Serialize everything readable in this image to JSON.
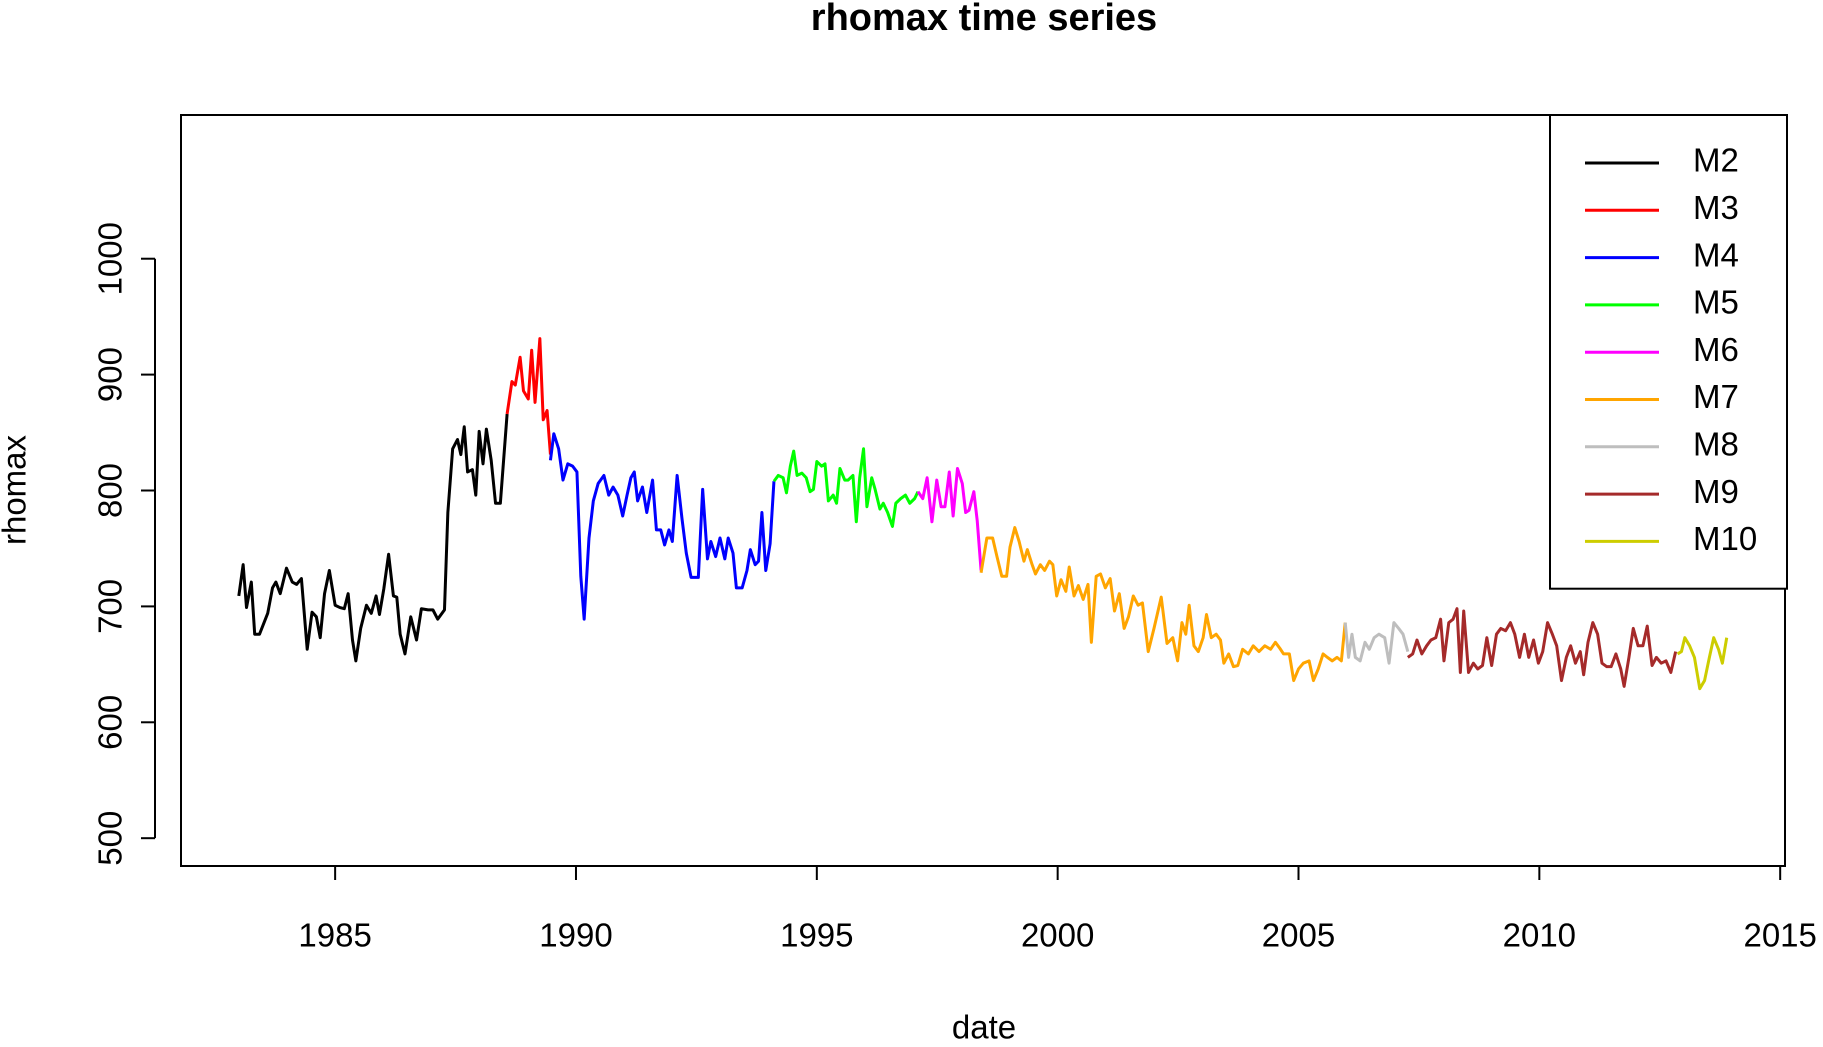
{
  "chart_data": {
    "type": "line",
    "title": "rhomax time series",
    "x_label": "date",
    "y_label": "rhomax",
    "xlim": [
      1981.8,
      2015.1
    ],
    "ylim": [
      476,
      1124
    ],
    "xticks": [
      1985,
      1990,
      1995,
      2000,
      2005,
      2010,
      2015
    ],
    "yticks": [
      500,
      600,
      700,
      800,
      900,
      1000
    ],
    "legend": "topright",
    "series": [
      {
        "name": "M2",
        "color": "#000000",
        "x": [
          1983.0,
          1983.09,
          1983.16,
          1983.26,
          1983.33,
          1983.43,
          1983.6,
          1983.7,
          1983.77,
          1983.86,
          1983.99,
          1984.11,
          1984.2,
          1984.3,
          1984.42,
          1984.52,
          1984.61,
          1984.69,
          1984.78,
          1984.88,
          1985.0,
          1985.1,
          1985.19,
          1985.27,
          1985.36,
          1985.43,
          1985.53,
          1985.65,
          1985.75,
          1985.85,
          1985.92,
          1986.01,
          1986.11,
          1986.21,
          1986.28,
          1986.35,
          1986.45,
          1986.57,
          1986.69,
          1986.79,
          1986.93,
          1987.03,
          1987.13,
          1987.27,
          1987.34,
          1987.44,
          1987.54,
          1987.61,
          1987.68,
          1987.75,
          1987.85,
          1987.92,
          1987.99,
          1988.07,
          1988.14,
          1988.24,
          1988.33,
          1988.43,
          1988.57
        ],
        "values": [
          709,
          736,
          699,
          721,
          676,
          676,
          694,
          716,
          721,
          711,
          733,
          721,
          719,
          724,
          663,
          695,
          691,
          673,
          711,
          731,
          701,
          699,
          698,
          711,
          671,
          653,
          681,
          701,
          694,
          709,
          693,
          715,
          745,
          709,
          708,
          676,
          659,
          691,
          671,
          698,
          697,
          697,
          689,
          697,
          781,
          836,
          844,
          831,
          855,
          816,
          818,
          796,
          851,
          823,
          853,
          826,
          789,
          789,
          866
        ]
      },
      {
        "name": "M3",
        "color": "#ff0000",
        "x": [
          1988.57,
          1988.67,
          1988.74,
          1988.84,
          1988.91,
          1989.01,
          1989.08,
          1989.15,
          1989.25,
          1989.32,
          1989.4,
          1989.47
        ],
        "values": [
          866,
          894,
          891,
          915,
          886,
          879,
          921,
          876,
          931,
          861,
          869,
          831
        ]
      },
      {
        "name": "M4",
        "color": "#0000ff",
        "x": [
          1989.47,
          1989.54,
          1989.64,
          1989.73,
          1989.83,
          1989.93,
          1990.02,
          1990.1,
          1990.17,
          1990.27,
          1990.36,
          1990.46,
          1990.58,
          1990.68,
          1990.77,
          1990.87,
          1990.97,
          1991.06,
          1991.14,
          1991.21,
          1991.28,
          1991.38,
          1991.47,
          1991.59,
          1991.67,
          1991.76,
          1991.84,
          1991.93,
          1992.0,
          1992.1,
          1992.2,
          1992.29,
          1992.39,
          1992.54,
          1992.63,
          1992.73,
          1992.8,
          1992.9,
          1992.99,
          1993.09,
          1993.16,
          1993.26,
          1993.33,
          1993.45,
          1993.55,
          1993.62,
          1993.72,
          1993.79,
          1993.86,
          1993.94,
          1994.03,
          1994.11
        ],
        "values": [
          826,
          849,
          836,
          809,
          823,
          821,
          816,
          726,
          689,
          759,
          791,
          806,
          813,
          796,
          803,
          796,
          778,
          796,
          811,
          816,
          791,
          803,
          781,
          809,
          766,
          766,
          753,
          766,
          756,
          813,
          776,
          746,
          725,
          725,
          801,
          741,
          756,
          743,
          759,
          741,
          759,
          746,
          716,
          716,
          731,
          749,
          736,
          739,
          781,
          731,
          754,
          808
        ]
      },
      {
        "name": "M5",
        "color": "#00ff00",
        "x": [
          1994.11,
          1994.2,
          1994.3,
          1994.37,
          1994.45,
          1994.52,
          1994.59,
          1994.69,
          1994.78,
          1994.86,
          1994.93,
          1995.0,
          1995.1,
          1995.17,
          1995.24,
          1995.34,
          1995.41,
          1995.48,
          1995.58,
          1995.65,
          1995.75,
          1995.82,
          1995.89,
          1995.97,
          1996.04,
          1996.14,
          1996.21,
          1996.31,
          1996.38,
          1996.47,
          1996.57,
          1996.64,
          1996.74,
          1996.84,
          1996.93,
          1997.03,
          1997.1
        ],
        "values": [
          808,
          813,
          811,
          798,
          821,
          834,
          813,
          815,
          811,
          799,
          801,
          825,
          821,
          823,
          791,
          796,
          789,
          819,
          809,
          809,
          813,
          773,
          811,
          836,
          786,
          811,
          801,
          784,
          789,
          781,
          769,
          789,
          793,
          796,
          789,
          793,
          799
        ]
      },
      {
        "name": "M6",
        "color": "#ff00ff",
        "x": [
          1997.1,
          1997.2,
          1997.29,
          1997.39,
          1997.49,
          1997.58,
          1997.66,
          1997.75,
          1997.83,
          1997.92,
          1998.02,
          1998.09,
          1998.16,
          1998.26,
          1998.33,
          1998.41
        ],
        "values": [
          799,
          793,
          811,
          773,
          809,
          786,
          786,
          816,
          778,
          819,
          806,
          781,
          783,
          799,
          774,
          731
        ]
      },
      {
        "name": "M7",
        "color": "#ffa500",
        "x": [
          1998.41,
          1998.53,
          1998.65,
          1998.74,
          1998.84,
          1998.94,
          1999.01,
          1999.11,
          1999.2,
          1999.3,
          1999.37,
          1999.47,
          1999.54,
          1999.64,
          1999.73,
          1999.83,
          1999.9,
          1999.98,
          2000.07,
          2000.17,
          2000.24,
          2000.34,
          2000.43,
          2000.53,
          2000.63,
          2000.7,
          2000.8,
          2000.89,
          2000.99,
          2001.09,
          2001.18,
          2001.28,
          2001.38,
          2001.47,
          2001.57,
          2001.67,
          2001.76,
          2001.88,
          2002.0,
          2002.15,
          2002.27,
          2002.39,
          2002.49,
          2002.58,
          2002.66,
          2002.73,
          2002.83,
          2002.92,
          2003.02,
          2003.09,
          2003.19,
          2003.29,
          2003.38,
          2003.45,
          2003.55,
          2003.65,
          2003.74,
          2003.84,
          2003.96,
          2004.06,
          2004.18,
          2004.3,
          2004.42,
          2004.52,
          2004.61,
          2004.69,
          2004.81,
          2004.9,
          2005.0,
          2005.1,
          2005.22,
          2005.31,
          2005.41,
          2005.51,
          2005.6,
          2005.7,
          2005.8,
          2005.89,
          2005.97
        ],
        "values": [
          729,
          759,
          759,
          743,
          726,
          726,
          751,
          768,
          756,
          739,
          749,
          736,
          728,
          736,
          731,
          739,
          736,
          709,
          723,
          713,
          734,
          709,
          718,
          706,
          719,
          669,
          726,
          728,
          716,
          724,
          696,
          711,
          681,
          691,
          709,
          701,
          703,
          661,
          681,
          708,
          668,
          673,
          653,
          686,
          676,
          701,
          666,
          661,
          673,
          693,
          673,
          676,
          671,
          651,
          659,
          648,
          649,
          663,
          659,
          666,
          661,
          666,
          663,
          669,
          664,
          659,
          659,
          636,
          646,
          651,
          653,
          636,
          646,
          659,
          656,
          653,
          656,
          653,
          686
        ]
      },
      {
        "name": "M8",
        "color": "#bebebe",
        "x": [
          2005.97,
          2006.04,
          2006.11,
          2006.18,
          2006.28,
          2006.38,
          2006.47,
          2006.57,
          2006.67,
          2006.79,
          2006.88,
          2006.98,
          2007.08,
          2007.17,
          2007.27
        ],
        "values": [
          686,
          656,
          676,
          656,
          653,
          669,
          663,
          673,
          676,
          673,
          651,
          686,
          681,
          676,
          661
        ]
      },
      {
        "name": "M9",
        "color": "#a52a2a",
        "x": [
          2007.27,
          2007.37,
          2007.46,
          2007.56,
          2007.66,
          2007.75,
          2007.85,
          2007.95,
          2008.02,
          2008.12,
          2008.21,
          2008.29,
          2008.36,
          2008.43,
          2008.53,
          2008.63,
          2008.72,
          2008.82,
          2008.91,
          2009.01,
          2009.11,
          2009.2,
          2009.3,
          2009.4,
          2009.49,
          2009.59,
          2009.69,
          2009.78,
          2009.88,
          2009.98,
          2010.07,
          2010.17,
          2010.27,
          2010.36,
          2010.46,
          2010.56,
          2010.65,
          2010.75,
          2010.85,
          2010.92,
          2011.01,
          2011.11,
          2011.21,
          2011.3,
          2011.4,
          2011.49,
          2011.59,
          2011.69,
          2011.76,
          2011.86,
          2011.95,
          2012.05,
          2012.15,
          2012.24,
          2012.34,
          2012.43,
          2012.53,
          2012.63,
          2012.73,
          2012.83
        ],
        "values": [
          656,
          659,
          671,
          659,
          666,
          671,
          673,
          689,
          653,
          686,
          689,
          698,
          643,
          696,
          643,
          651,
          646,
          649,
          673,
          649,
          676,
          681,
          679,
          686,
          676,
          656,
          676,
          656,
          671,
          651,
          661,
          686,
          676,
          666,
          636,
          656,
          666,
          651,
          661,
          641,
          669,
          686,
          676,
          651,
          648,
          648,
          659,
          646,
          631,
          656,
          681,
          666,
          666,
          683,
          649,
          656,
          651,
          653,
          643,
          661
        ]
      },
      {
        "name": "M10",
        "color": "#cdcd00",
        "x": [
          2012.87,
          2012.95,
          2013.02,
          2013.12,
          2013.22,
          2013.33,
          2013.43,
          2013.53,
          2013.62,
          2013.72,
          2013.8,
          2013.89
        ],
        "values": [
          659,
          661,
          673,
          666,
          656,
          629,
          636,
          656,
          673,
          663,
          651,
          673
        ]
      }
    ]
  }
}
